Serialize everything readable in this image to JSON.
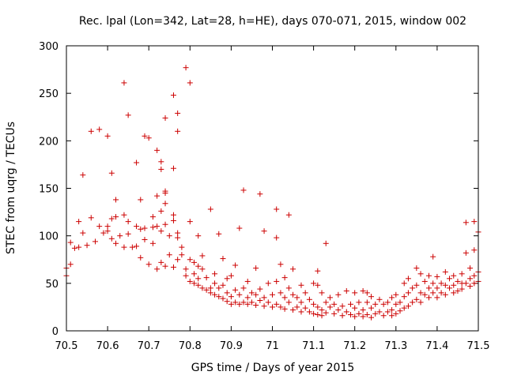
{
  "chart_data": {
    "type": "scatter",
    "title": "Rec. lpal (Lon=342, Lat=28, h=HE), days 070-071, 2015, window 002",
    "xlabel": "GPS time / Days of year 2015",
    "ylabel": "STEC from uqrg / TECUs",
    "xlim": [
      70.5,
      71.5
    ],
    "ylim": [
      0,
      300
    ],
    "x_ticks": [
      "70.5",
      "70.6",
      "70.7",
      "70.8",
      "70.9",
      "71",
      "71.1",
      "71.2",
      "71.3",
      "71.4",
      "71.5"
    ],
    "y_ticks": [
      "0",
      "50",
      "100",
      "150",
      "200",
      "250",
      "300"
    ],
    "grid": false,
    "legend": "none",
    "marker": "+",
    "color": "#cc0000",
    "points": [
      [
        70.5,
        66
      ],
      [
        70.5,
        58
      ],
      [
        70.51,
        93
      ],
      [
        70.51,
        70
      ],
      [
        70.52,
        87
      ],
      [
        70.53,
        115
      ],
      [
        70.53,
        88
      ],
      [
        70.54,
        164
      ],
      [
        70.54,
        103
      ],
      [
        70.55,
        90
      ],
      [
        70.56,
        210
      ],
      [
        70.56,
        119
      ],
      [
        70.57,
        94
      ],
      [
        70.58,
        212
      ],
      [
        70.58,
        110
      ],
      [
        70.59,
        103
      ],
      [
        70.6,
        205
      ],
      [
        70.6,
        110
      ],
      [
        70.6,
        105
      ],
      [
        70.61,
        166
      ],
      [
        70.61,
        118
      ],
      [
        70.61,
        97
      ],
      [
        70.62,
        138
      ],
      [
        70.62,
        120
      ],
      [
        70.62,
        92
      ],
      [
        70.63,
        100
      ],
      [
        70.64,
        261
      ],
      [
        70.64,
        122
      ],
      [
        70.64,
        88
      ],
      [
        70.65,
        227
      ],
      [
        70.65,
        115
      ],
      [
        70.65,
        102
      ],
      [
        70.66,
        88
      ],
      [
        70.67,
        177
      ],
      [
        70.67,
        110
      ],
      [
        70.67,
        89
      ],
      [
        70.68,
        138
      ],
      [
        70.68,
        107
      ],
      [
        70.68,
        77
      ],
      [
        70.69,
        205
      ],
      [
        70.69,
        108
      ],
      [
        70.69,
        96
      ],
      [
        70.7,
        203
      ],
      [
        70.7,
        70
      ],
      [
        70.71,
        120
      ],
      [
        70.71,
        109
      ],
      [
        70.71,
        92
      ],
      [
        70.72,
        190
      ],
      [
        70.72,
        142
      ],
      [
        70.72,
        110
      ],
      [
        70.72,
        65
      ],
      [
        70.73,
        178
      ],
      [
        70.73,
        170
      ],
      [
        70.73,
        126
      ],
      [
        70.73,
        105
      ],
      [
        70.73,
        72
      ],
      [
        70.74,
        224
      ],
      [
        70.74,
        147
      ],
      [
        70.74,
        145
      ],
      [
        70.74,
        134
      ],
      [
        70.74,
        112
      ],
      [
        70.74,
        68
      ],
      [
        70.75,
        100
      ],
      [
        70.75,
        80
      ],
      [
        70.76,
        248
      ],
      [
        70.76,
        171
      ],
      [
        70.76,
        122
      ],
      [
        70.76,
        116
      ],
      [
        70.76,
        67
      ],
      [
        70.77,
        229
      ],
      [
        70.77,
        210
      ],
      [
        70.77,
        103
      ],
      [
        70.77,
        98
      ],
      [
        70.77,
        75
      ],
      [
        70.78,
        88
      ],
      [
        70.78,
        80
      ],
      [
        70.79,
        277
      ],
      [
        70.79,
        65
      ],
      [
        70.79,
        58
      ],
      [
        70.8,
        261
      ],
      [
        70.8,
        115
      ],
      [
        70.8,
        75
      ],
      [
        70.8,
        52
      ],
      [
        70.81,
        72
      ],
      [
        70.81,
        60
      ],
      [
        70.81,
        50
      ],
      [
        70.82,
        100
      ],
      [
        70.82,
        68
      ],
      [
        70.82,
        55
      ],
      [
        70.82,
        48
      ],
      [
        70.83,
        79
      ],
      [
        70.83,
        65
      ],
      [
        70.83,
        45
      ],
      [
        70.84,
        56
      ],
      [
        70.84,
        43
      ],
      [
        70.85,
        128
      ],
      [
        70.85,
        45
      ],
      [
        70.85,
        40
      ],
      [
        70.86,
        60
      ],
      [
        70.86,
        50
      ],
      [
        70.86,
        38
      ],
      [
        70.87,
        102
      ],
      [
        70.87,
        45
      ],
      [
        70.87,
        36
      ],
      [
        70.88,
        76
      ],
      [
        70.88,
        48
      ],
      [
        70.88,
        34
      ],
      [
        70.89,
        55
      ],
      [
        70.89,
        40
      ],
      [
        70.89,
        31
      ],
      [
        70.9,
        58
      ],
      [
        70.9,
        36
      ],
      [
        70.9,
        28
      ],
      [
        70.91,
        69
      ],
      [
        70.91,
        43
      ],
      [
        70.91,
        30
      ],
      [
        70.92,
        108
      ],
      [
        70.92,
        38
      ],
      [
        70.92,
        28
      ],
      [
        70.93,
        148
      ],
      [
        70.93,
        45
      ],
      [
        70.93,
        30
      ],
      [
        70.94,
        52
      ],
      [
        70.94,
        35
      ],
      [
        70.94,
        28
      ],
      [
        70.95,
        40
      ],
      [
        70.95,
        30
      ],
      [
        70.96,
        66
      ],
      [
        70.96,
        38
      ],
      [
        70.96,
        27
      ],
      [
        70.97,
        144
      ],
      [
        70.97,
        44
      ],
      [
        70.97,
        32
      ],
      [
        70.98,
        105
      ],
      [
        70.98,
        35
      ],
      [
        70.98,
        26
      ],
      [
        70.99,
        50
      ],
      [
        70.99,
        30
      ],
      [
        71.0,
        38
      ],
      [
        71.0,
        25
      ],
      [
        71.01,
        128
      ],
      [
        71.01,
        98
      ],
      [
        71.01,
        52
      ],
      [
        71.01,
        28
      ],
      [
        71.02,
        70
      ],
      [
        71.02,
        40
      ],
      [
        71.02,
        25
      ],
      [
        71.03,
        56
      ],
      [
        71.03,
        35
      ],
      [
        71.03,
        23
      ],
      [
        71.04,
        122
      ],
      [
        71.04,
        45
      ],
      [
        71.04,
        30
      ],
      [
        71.05,
        65
      ],
      [
        71.05,
        38
      ],
      [
        71.05,
        22
      ],
      [
        71.06,
        35
      ],
      [
        71.06,
        25
      ],
      [
        71.07,
        48
      ],
      [
        71.07,
        30
      ],
      [
        71.07,
        20
      ],
      [
        71.08,
        40
      ],
      [
        71.08,
        24
      ],
      [
        71.09,
        33
      ],
      [
        71.09,
        20
      ],
      [
        71.1,
        50
      ],
      [
        71.1,
        28
      ],
      [
        71.1,
        18
      ],
      [
        71.11,
        63
      ],
      [
        71.11,
        48
      ],
      [
        71.11,
        25
      ],
      [
        71.11,
        17
      ],
      [
        71.12,
        40
      ],
      [
        71.12,
        22
      ],
      [
        71.12,
        16
      ],
      [
        71.13,
        92
      ],
      [
        71.13,
        30
      ],
      [
        71.13,
        19
      ],
      [
        71.14,
        35
      ],
      [
        71.14,
        25
      ],
      [
        71.15,
        28
      ],
      [
        71.15,
        18
      ],
      [
        71.16,
        38
      ],
      [
        71.16,
        22
      ],
      [
        71.17,
        26
      ],
      [
        71.17,
        16
      ],
      [
        71.18,
        42
      ],
      [
        71.18,
        20
      ],
      [
        71.19,
        28
      ],
      [
        71.19,
        17
      ],
      [
        71.2,
        40
      ],
      [
        71.2,
        24
      ],
      [
        71.2,
        15
      ],
      [
        71.21,
        30
      ],
      [
        71.21,
        18
      ],
      [
        71.22,
        42
      ],
      [
        71.22,
        22
      ],
      [
        71.22,
        15
      ],
      [
        71.23,
        40
      ],
      [
        71.23,
        30
      ],
      [
        71.23,
        17
      ],
      [
        71.24,
        36
      ],
      [
        71.24,
        24
      ],
      [
        71.24,
        14
      ],
      [
        71.25,
        28
      ],
      [
        71.25,
        18
      ],
      [
        71.26,
        33
      ],
      [
        71.26,
        20
      ],
      [
        71.27,
        28
      ],
      [
        71.27,
        16
      ],
      [
        71.28,
        30
      ],
      [
        71.28,
        20
      ],
      [
        71.29,
        35
      ],
      [
        71.29,
        22
      ],
      [
        71.29,
        16
      ],
      [
        71.3,
        38
      ],
      [
        71.3,
        28
      ],
      [
        71.3,
        18
      ],
      [
        71.31,
        30
      ],
      [
        71.31,
        21
      ],
      [
        71.32,
        50
      ],
      [
        71.32,
        36
      ],
      [
        71.32,
        24
      ],
      [
        71.33,
        55
      ],
      [
        71.33,
        40
      ],
      [
        71.33,
        26
      ],
      [
        71.34,
        45
      ],
      [
        71.34,
        30
      ],
      [
        71.35,
        66
      ],
      [
        71.35,
        48
      ],
      [
        71.35,
        33
      ],
      [
        71.36,
        60
      ],
      [
        71.36,
        40
      ],
      [
        71.36,
        30
      ],
      [
        71.37,
        52
      ],
      [
        71.37,
        38
      ],
      [
        71.38,
        58
      ],
      [
        71.38,
        45
      ],
      [
        71.38,
        35
      ],
      [
        71.39,
        78
      ],
      [
        71.39,
        50
      ],
      [
        71.39,
        40
      ],
      [
        71.4,
        57
      ],
      [
        71.4,
        45
      ],
      [
        71.4,
        35
      ],
      [
        71.41,
        50
      ],
      [
        71.41,
        40
      ],
      [
        71.42,
        62
      ],
      [
        71.42,
        48
      ],
      [
        71.42,
        38
      ],
      [
        71.43,
        55
      ],
      [
        71.43,
        45
      ],
      [
        71.44,
        58
      ],
      [
        71.44,
        48
      ],
      [
        71.44,
        40
      ],
      [
        71.45,
        52
      ],
      [
        71.45,
        42
      ],
      [
        71.46,
        60
      ],
      [
        71.46,
        50
      ],
      [
        71.46,
        44
      ],
      [
        71.47,
        114
      ],
      [
        71.47,
        82
      ],
      [
        71.47,
        50
      ],
      [
        71.48,
        66
      ],
      [
        71.48,
        55
      ],
      [
        71.48,
        47
      ],
      [
        71.49,
        115
      ],
      [
        71.49,
        85
      ],
      [
        71.49,
        58
      ],
      [
        71.49,
        50
      ],
      [
        71.5,
        104
      ],
      [
        71.5,
        62
      ],
      [
        71.5,
        52
      ]
    ]
  }
}
